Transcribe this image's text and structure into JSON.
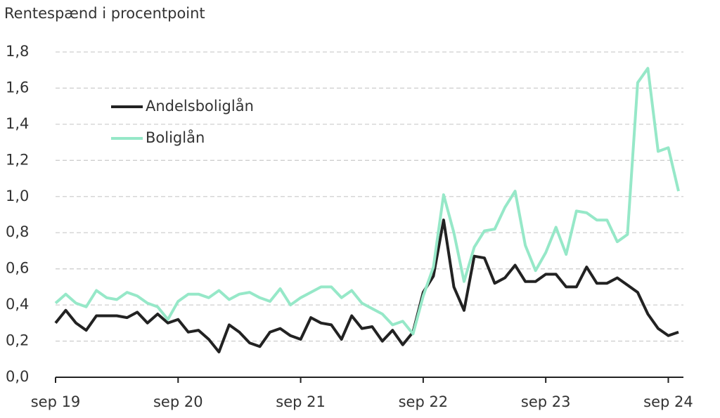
{
  "chart_data": {
    "type": "line",
    "title": "Rentespænd i procentpoint",
    "categories": [
      "sep 19",
      null,
      null,
      null,
      null,
      null,
      null,
      null,
      null,
      null,
      null,
      null,
      "sep 20",
      null,
      null,
      null,
      null,
      null,
      null,
      null,
      null,
      null,
      null,
      null,
      "sep 21",
      null,
      null,
      null,
      null,
      null,
      null,
      null,
      null,
      null,
      null,
      null,
      "sep 22",
      null,
      null,
      null,
      null,
      null,
      null,
      null,
      null,
      null,
      null,
      null,
      "sep 23",
      null,
      null,
      null,
      null,
      null,
      null,
      null,
      null,
      null,
      null,
      null,
      "sep 24",
      null
    ],
    "series": [
      {
        "name": "Andelsboliglån",
        "color": "#222222",
        "values": [
          0.3,
          0.37,
          0.3,
          0.26,
          0.34,
          0.34,
          0.34,
          0.33,
          0.36,
          0.3,
          0.35,
          0.3,
          0.32,
          0.25,
          0.26,
          0.21,
          0.14,
          0.29,
          0.25,
          0.19,
          0.17,
          0.25,
          0.27,
          0.23,
          0.21,
          0.33,
          0.3,
          0.29,
          0.21,
          0.34,
          0.27,
          0.28,
          0.2,
          0.26,
          0.18,
          0.25,
          0.47,
          0.56,
          0.87,
          0.5,
          0.37,
          0.67,
          0.66,
          0.52,
          0.55,
          0.62,
          0.53,
          0.53,
          0.57,
          0.57,
          0.5,
          0.5,
          0.61,
          0.52,
          0.52,
          0.55,
          0.51,
          0.47,
          0.35,
          0.27,
          0.23,
          0.25
        ]
      },
      {
        "name": "Boliglån",
        "color": "#96e8c8",
        "values": [
          0.41,
          0.46,
          0.41,
          0.39,
          0.48,
          0.44,
          0.43,
          0.47,
          0.45,
          0.41,
          0.39,
          0.32,
          0.42,
          0.46,
          0.46,
          0.44,
          0.48,
          0.43,
          0.46,
          0.47,
          0.44,
          0.42,
          0.49,
          0.4,
          0.44,
          0.47,
          0.5,
          0.5,
          0.44,
          0.48,
          0.41,
          0.38,
          0.35,
          0.29,
          0.31,
          0.24,
          0.45,
          0.61,
          1.01,
          0.8,
          0.53,
          0.72,
          0.81,
          0.82,
          0.94,
          1.03,
          0.73,
          0.59,
          0.69,
          0.83,
          0.68,
          0.92,
          0.91,
          0.87,
          0.87,
          0.75,
          0.79,
          1.63,
          1.71,
          1.25,
          1.27,
          1.03
        ]
      }
    ],
    "ylim": [
      0,
      1.8
    ],
    "yticks": [
      {
        "value": 0,
        "label": "0,0"
      },
      {
        "value": 0.2,
        "label": "0,2"
      },
      {
        "value": 0.4,
        "label": "0,4"
      },
      {
        "value": 0.6,
        "label": "0,6"
      },
      {
        "value": 0.8,
        "label": "0,8"
      },
      {
        "value": 1.0,
        "label": "1,0"
      },
      {
        "value": 1.2,
        "label": "1,2"
      },
      {
        "value": 1.4,
        "label": "1,4"
      },
      {
        "value": 1.6,
        "label": "1,6"
      },
      {
        "value": 1.8,
        "label": "1,8"
      }
    ],
    "grid": true
  }
}
